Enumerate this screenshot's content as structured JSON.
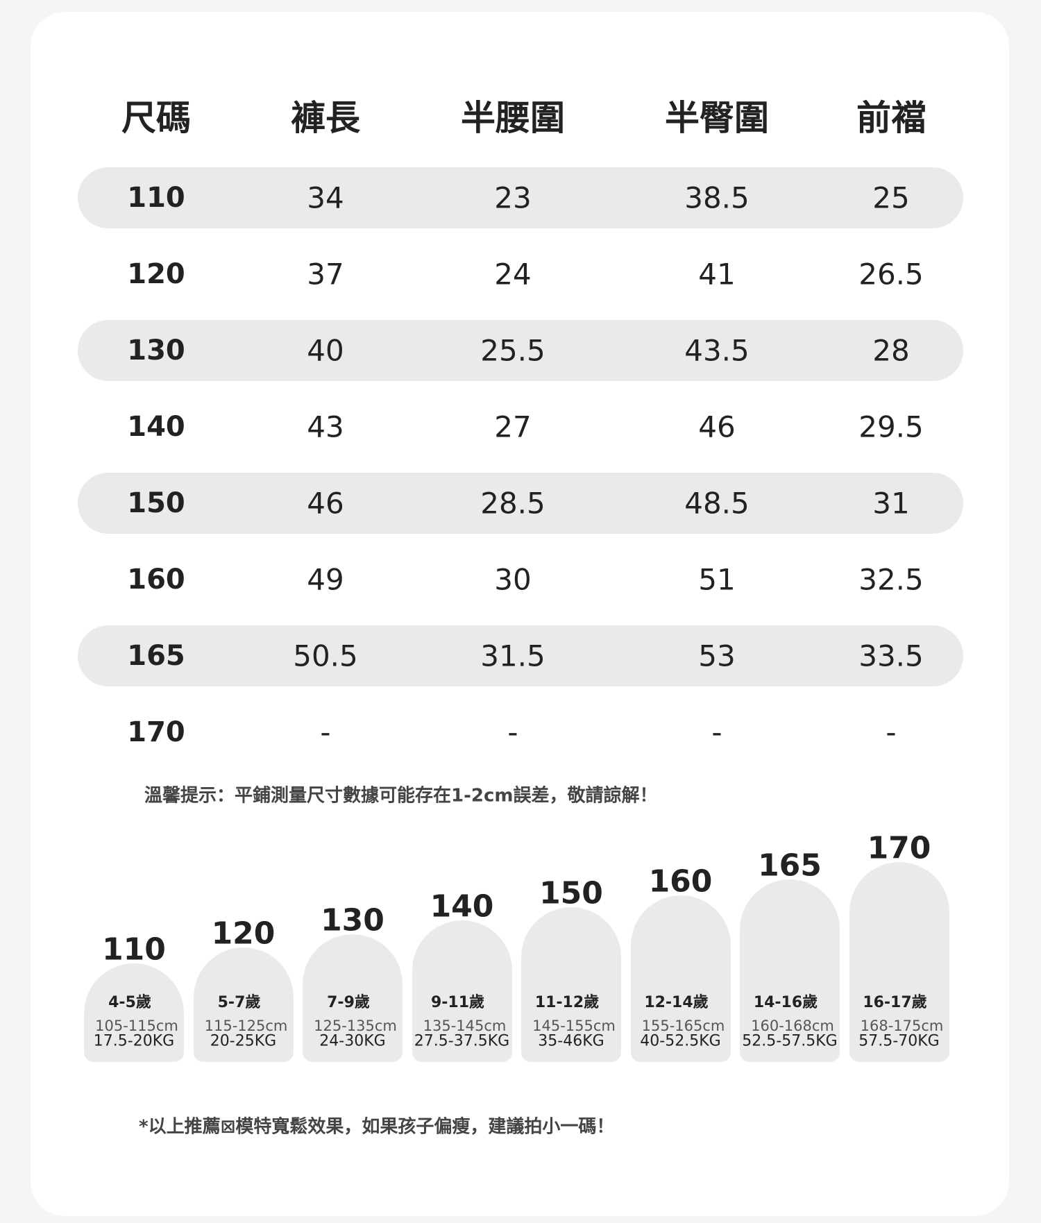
{
  "table": {
    "header": [
      "尺碼",
      "褲長",
      "半腰圍",
      "半臀圍",
      "前襠"
    ],
    "rows": [
      [
        "110",
        "34",
        "23",
        "38.5",
        "25"
      ],
      [
        "120",
        "37",
        "24",
        "41",
        "26.5"
      ],
      [
        "130",
        "40",
        "25.5",
        "43.5",
        "28"
      ],
      [
        "140",
        "43",
        "27",
        "46",
        "29.5"
      ],
      [
        "150",
        "46",
        "28.5",
        "48.5",
        "31"
      ],
      [
        "160",
        "49",
        "30",
        "51",
        "32.5"
      ],
      [
        "165",
        "50.5",
        "31.5",
        "53",
        "33.5"
      ],
      [
        "170",
        "-",
        "-",
        "-",
        "-"
      ]
    ]
  },
  "note": "溫馨提示：平鋪測量尺寸數據可能存在1-2cm誤差，敬請諒解！",
  "cards": [
    {
      "size": "110",
      "age": "4-5歲",
      "height": "105-115cm",
      "weight": "17.5-20KG"
    },
    {
      "size": "120",
      "age": "5-7歲",
      "height": "115-125cm",
      "weight": "20-25KG"
    },
    {
      "size": "130",
      "age": "7-9歲",
      "height": "125-135cm",
      "weight": "24-30KG"
    },
    {
      "size": "140",
      "age": "9-11歲",
      "height": "135-145cm",
      "weight": "27.5-37.5KG"
    },
    {
      "size": "150",
      "age": "11-12歲",
      "height": "145-155cm",
      "weight": "35-46KG"
    },
    {
      "size": "160",
      "age": "12-14歲",
      "height": "155-165cm",
      "weight": "40-52.5KG"
    },
    {
      "size": "165",
      "age": "14-16歲",
      "height": "160-168cm",
      "weight": "52.5-57.5KG"
    },
    {
      "size": "170",
      "age": "16-17歲",
      "height": "168-175cm",
      "weight": "57.5-70KG"
    }
  ],
  "footer": "*以上推薦⊠模特寬鬆效果，如果孩子偏瘦，建議拍小一碼！"
}
